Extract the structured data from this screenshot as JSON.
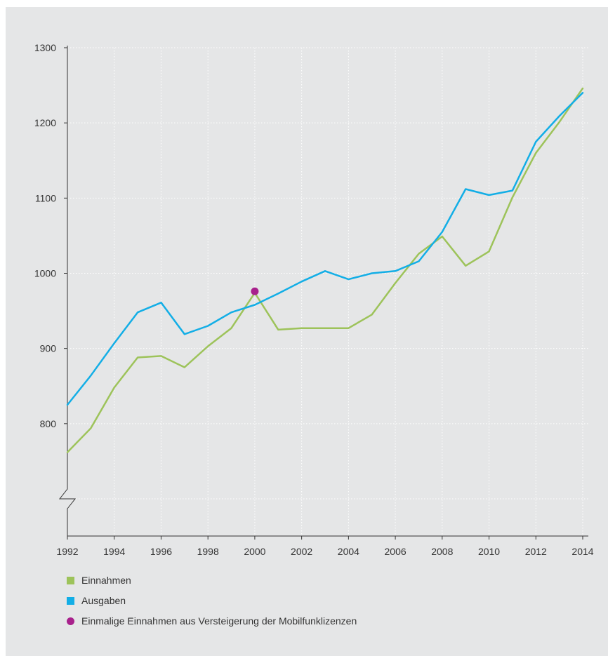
{
  "colors": {
    "einnahmen": "#9dc35a",
    "ausgaben": "#13aee6",
    "marker": "#a8218c",
    "axis": "#333333",
    "grid": "#ffffff"
  },
  "legend": {
    "einnahmen": "Einnahmen",
    "ausgaben": "Ausgaben",
    "marker": "Einmalige Einnahmen aus Versteigerung der Mobilfunklizenzen"
  },
  "chart_data": {
    "type": "line",
    "x": [
      1992,
      1993,
      1994,
      1995,
      1996,
      1997,
      1998,
      1999,
      2000,
      2001,
      2002,
      2003,
      2004,
      2005,
      2006,
      2007,
      2008,
      2009,
      2010,
      2011,
      2012,
      2013,
      2014
    ],
    "x_ticks": [
      "1992",
      "1994",
      "1996",
      "1998",
      "2000",
      "2002",
      "2004",
      "2006",
      "2008",
      "2010",
      "2012",
      "2014"
    ],
    "y_ticks": [
      "800",
      "900",
      "1000",
      "1100",
      "1200",
      "1300"
    ],
    "ylim": [
      700,
      1300
    ],
    "xlim": [
      1992,
      2014
    ],
    "y_axis_break": true,
    "grid": "dotted",
    "series": [
      {
        "name": "Einnahmen",
        "color": "#9dc35a",
        "values": [
          762,
          794,
          848,
          888,
          890,
          875,
          903,
          927,
          974,
          925,
          927,
          927,
          927,
          945,
          987,
          1026,
          1049,
          1010,
          1029,
          1101,
          1160,
          1201,
          1246
        ]
      },
      {
        "name": "Ausgaben",
        "color": "#13aee6",
        "values": [
          825,
          864,
          907,
          948,
          961,
          919,
          930,
          948,
          958,
          973,
          989,
          1003,
          992,
          1000,
          1003,
          1016,
          1055,
          1112,
          1104,
          1110,
          1175,
          1209,
          1240
        ]
      }
    ],
    "markers": [
      {
        "name": "Einmalige Einnahmen aus Versteigerung der Mobilfunklizenzen",
        "x": 2000,
        "y": 976,
        "color": "#a8218c"
      }
    ]
  }
}
